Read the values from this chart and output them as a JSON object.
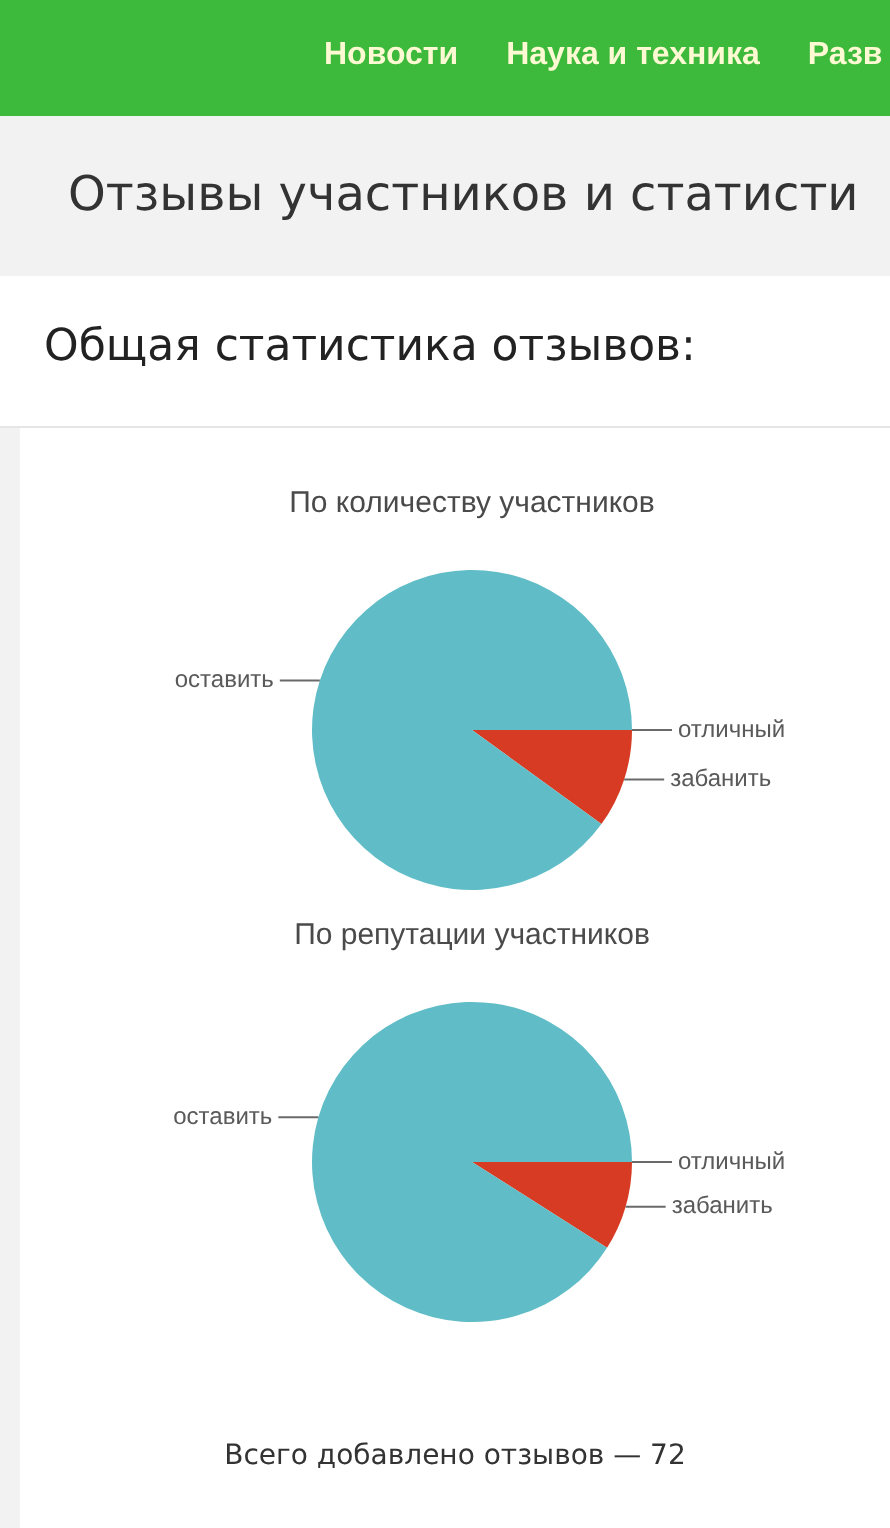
{
  "chart_data": [
    {
      "type": "pie",
      "title": "По количеству участников",
      "categories": [
        "отличный",
        "забанить",
        "оставить"
      ],
      "values": [
        0,
        10,
        90
      ],
      "colors": [
        "#8cc152",
        "#d83b23",
        "#60bdc7"
      ],
      "annotations": [
        "Новости",
        "Наука и техника",
        "Разв",
        "Отзывы участников и статисти",
        "Общая статистика отзывов:"
      ]
    },
    {
      "type": "pie",
      "title": "По репутации участников",
      "categories": [
        "отличный",
        "забанить",
        "оставить"
      ],
      "values": [
        0,
        9,
        91
      ],
      "colors": [
        "#8cc152",
        "#d83b23",
        "#60bdc7"
      ],
      "annotations": [
        "Всего добавлено отзывов — 72"
      ]
    }
  ]
}
